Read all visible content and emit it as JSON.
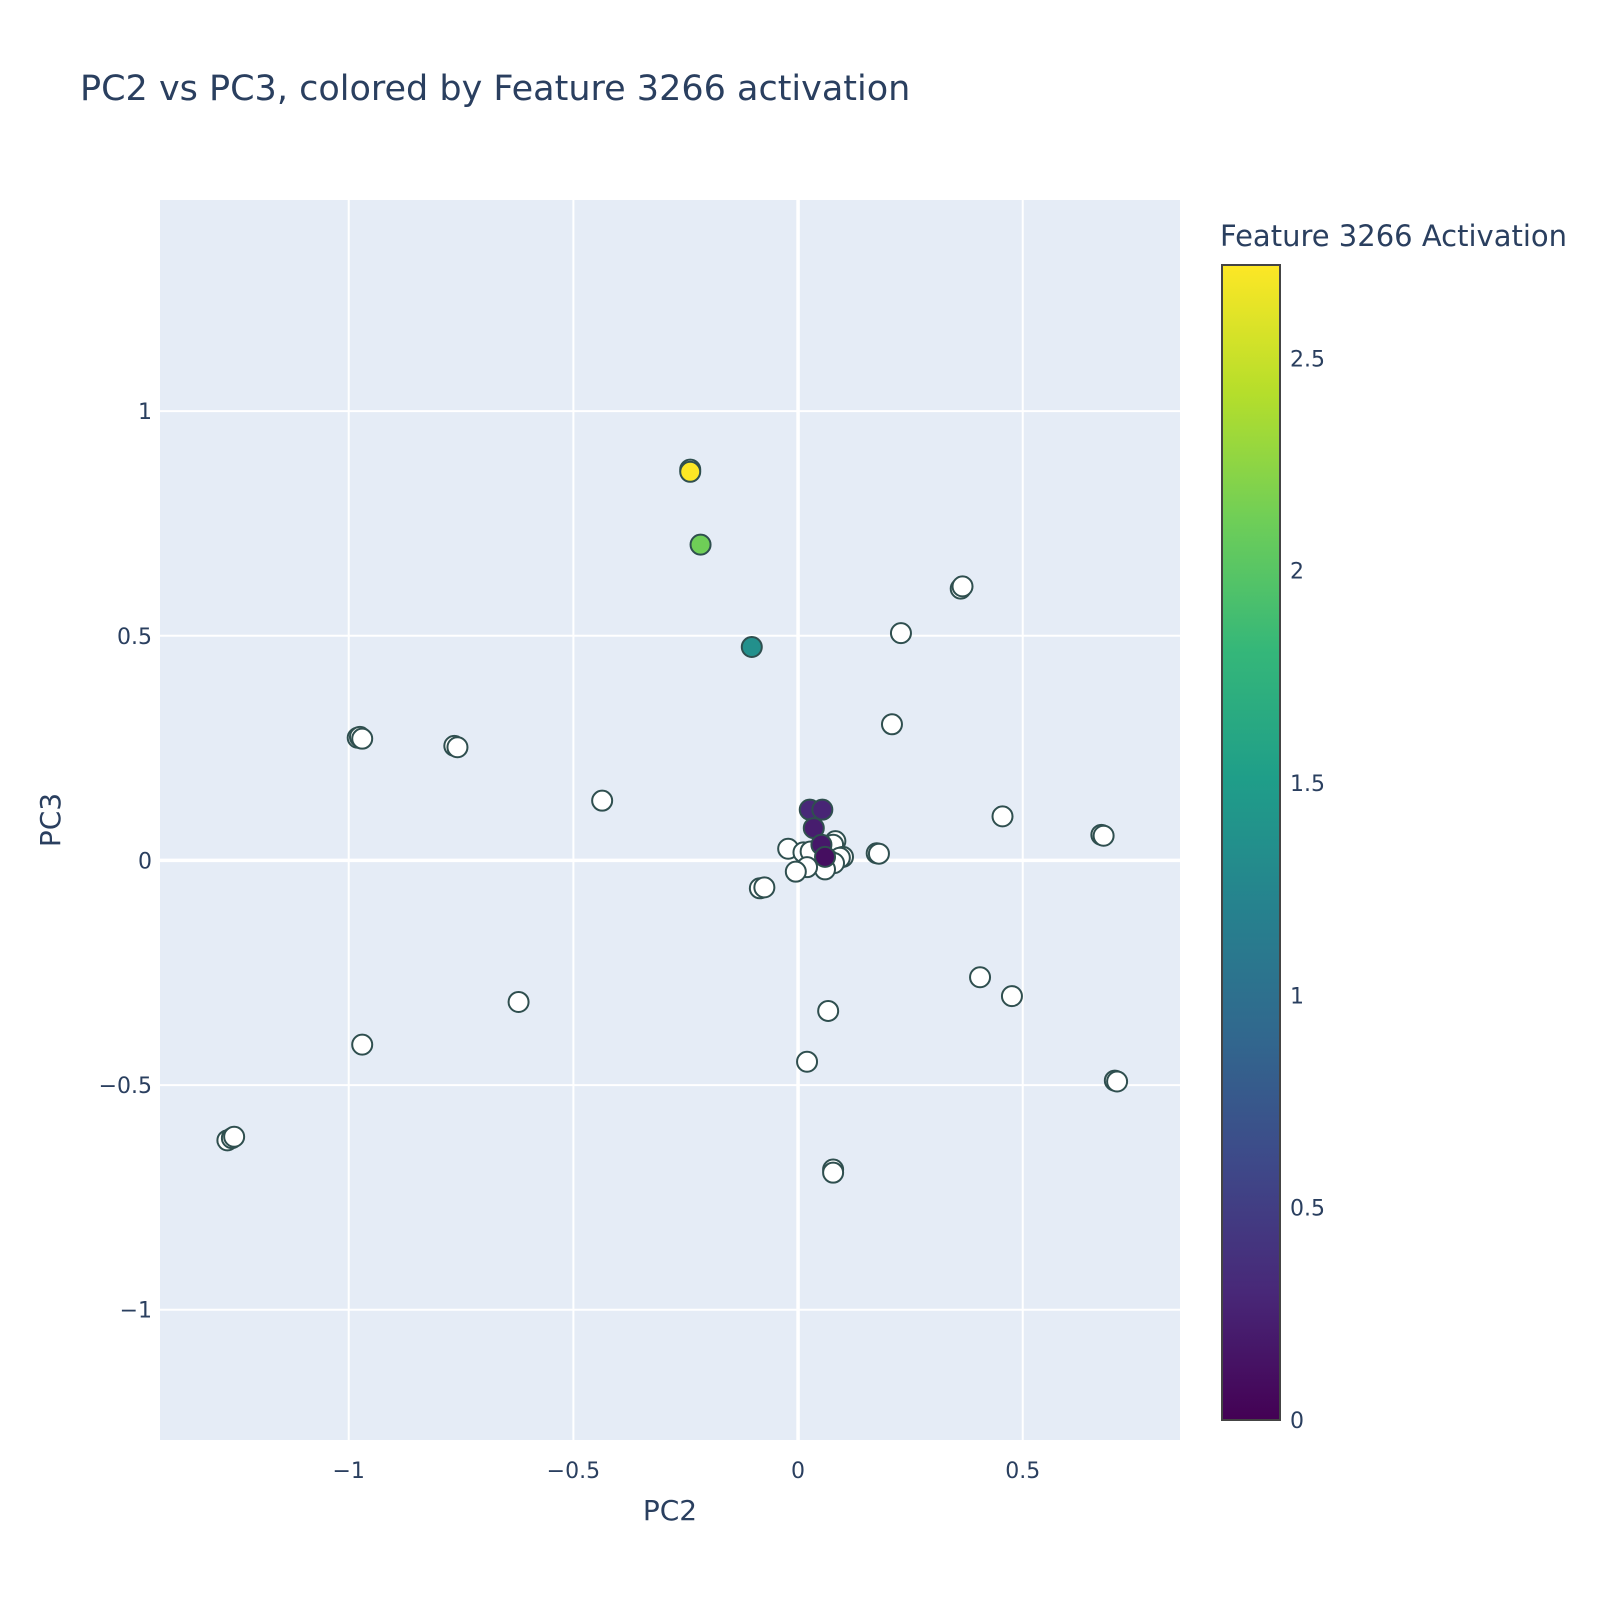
{
  "chart_data": {
    "type": "scatter",
    "title": "PC2 vs PC3, colored by Feature 3266 activation",
    "xlabel": "PC2",
    "ylabel": "PC3",
    "xlim": [
      -1.42,
      0.85
    ],
    "ylim": [
      -1.29,
      1.47
    ],
    "xticks": [
      -1,
      -0.5,
      0,
      0.5
    ],
    "xtick_labels": [
      "−1",
      "−0.5",
      "0",
      "0.5"
    ],
    "yticks": [
      -1,
      -0.5,
      0,
      0.5,
      1
    ],
    "ytick_labels": [
      "−1",
      "−0.5",
      "0",
      "0.5",
      "1"
    ],
    "grid": true,
    "plot_background": "#e5ecf6",
    "marker_outline": "#2f4f4f",
    "colorscale": "Viridis",
    "colorbar": {
      "title": "Feature 3266 Activation",
      "range": [
        0,
        2.72
      ],
      "ticks": [
        0,
        0.5,
        1,
        1.5,
        2,
        2.5
      ],
      "tick_labels": [
        "0",
        "0.5",
        "1",
        "1.5",
        "2",
        "2.5"
      ],
      "colors": [
        "#440154",
        "#482878",
        "#3e4989",
        "#31688e",
        "#26828e",
        "#1f9e89",
        "#35b779",
        "#6ece58",
        "#b5de2b",
        "#fde725"
      ]
    },
    "points": [
      {
        "x": -0.24,
        "y": 0.87,
        "activation": 0
      },
      {
        "x": -0.24,
        "y": 0.865,
        "activation": 2.72
      },
      {
        "x": -0.217,
        "y": 0.703,
        "activation": 2.12
      },
      {
        "x": -0.103,
        "y": 0.475,
        "activation": 1.36
      },
      {
        "x": 0.026,
        "y": 0.113,
        "activation": 0.3
      },
      {
        "x": 0.054,
        "y": 0.113,
        "activation": 0.28
      },
      {
        "x": 0.035,
        "y": 0.072,
        "activation": 0.22
      },
      {
        "x": 0.052,
        "y": 0.035,
        "activation": 0.18
      },
      {
        "x": 0.06,
        "y": 0.008,
        "activation": 0.1
      },
      {
        "x": -0.98,
        "y": 0.273,
        "activation": 0
      },
      {
        "x": -0.975,
        "y": 0.275,
        "activation": 0
      },
      {
        "x": -0.97,
        "y": 0.271,
        "activation": 0
      },
      {
        "x": -0.765,
        "y": 0.255,
        "activation": 0
      },
      {
        "x": -0.758,
        "y": 0.252,
        "activation": 0
      },
      {
        "x": -0.436,
        "y": 0.133,
        "activation": 0
      },
      {
        "x": 0.362,
        "y": 0.605,
        "activation": 0
      },
      {
        "x": 0.366,
        "y": 0.61,
        "activation": 0
      },
      {
        "x": 0.229,
        "y": 0.506,
        "activation": 0
      },
      {
        "x": 0.209,
        "y": 0.303,
        "activation": 0
      },
      {
        "x": 0.455,
        "y": 0.098,
        "activation": 0
      },
      {
        "x": 0.675,
        "y": 0.057,
        "activation": 0
      },
      {
        "x": 0.68,
        "y": 0.055,
        "activation": 0
      },
      {
        "x": 0.175,
        "y": 0.016,
        "activation": 0
      },
      {
        "x": 0.18,
        "y": 0.015,
        "activation": 0
      },
      {
        "x": -0.022,
        "y": 0.026,
        "activation": 0
      },
      {
        "x": 0.012,
        "y": 0.018,
        "activation": 0
      },
      {
        "x": 0.028,
        "y": 0.02,
        "activation": 0
      },
      {
        "x": 0.083,
        "y": 0.043,
        "activation": 0
      },
      {
        "x": 0.078,
        "y": 0.035,
        "activation": 0
      },
      {
        "x": 0.1,
        "y": 0.008,
        "activation": 0
      },
      {
        "x": 0.093,
        "y": 0.006,
        "activation": 0
      },
      {
        "x": 0.072,
        "y": -0.002,
        "activation": 0
      },
      {
        "x": 0.08,
        "y": -0.006,
        "activation": 0
      },
      {
        "x": 0.06,
        "y": -0.02,
        "activation": 0
      },
      {
        "x": 0.02,
        "y": -0.015,
        "activation": 0
      },
      {
        "x": -0.005,
        "y": -0.025,
        "activation": 0
      },
      {
        "x": -0.085,
        "y": -0.062,
        "activation": 0
      },
      {
        "x": -0.075,
        "y": -0.06,
        "activation": 0
      },
      {
        "x": 0.405,
        "y": -0.26,
        "activation": 0
      },
      {
        "x": 0.476,
        "y": -0.302,
        "activation": 0
      },
      {
        "x": 0.067,
        "y": -0.335,
        "activation": 0
      },
      {
        "x": 0.02,
        "y": -0.448,
        "activation": 0
      },
      {
        "x": -0.622,
        "y": -0.315,
        "activation": 0
      },
      {
        "x": -0.97,
        "y": -0.41,
        "activation": 0
      },
      {
        "x": 0.705,
        "y": -0.49,
        "activation": 0
      },
      {
        "x": 0.71,
        "y": -0.492,
        "activation": 0
      },
      {
        "x": 0.078,
        "y": -0.688,
        "activation": 0
      },
      {
        "x": 0.078,
        "y": -0.695,
        "activation": 0
      },
      {
        "x": -1.27,
        "y": -0.623,
        "activation": 0
      },
      {
        "x": -1.26,
        "y": -0.618,
        "activation": 0
      },
      {
        "x": -1.255,
        "y": -0.615,
        "activation": 0
      }
    ]
  }
}
